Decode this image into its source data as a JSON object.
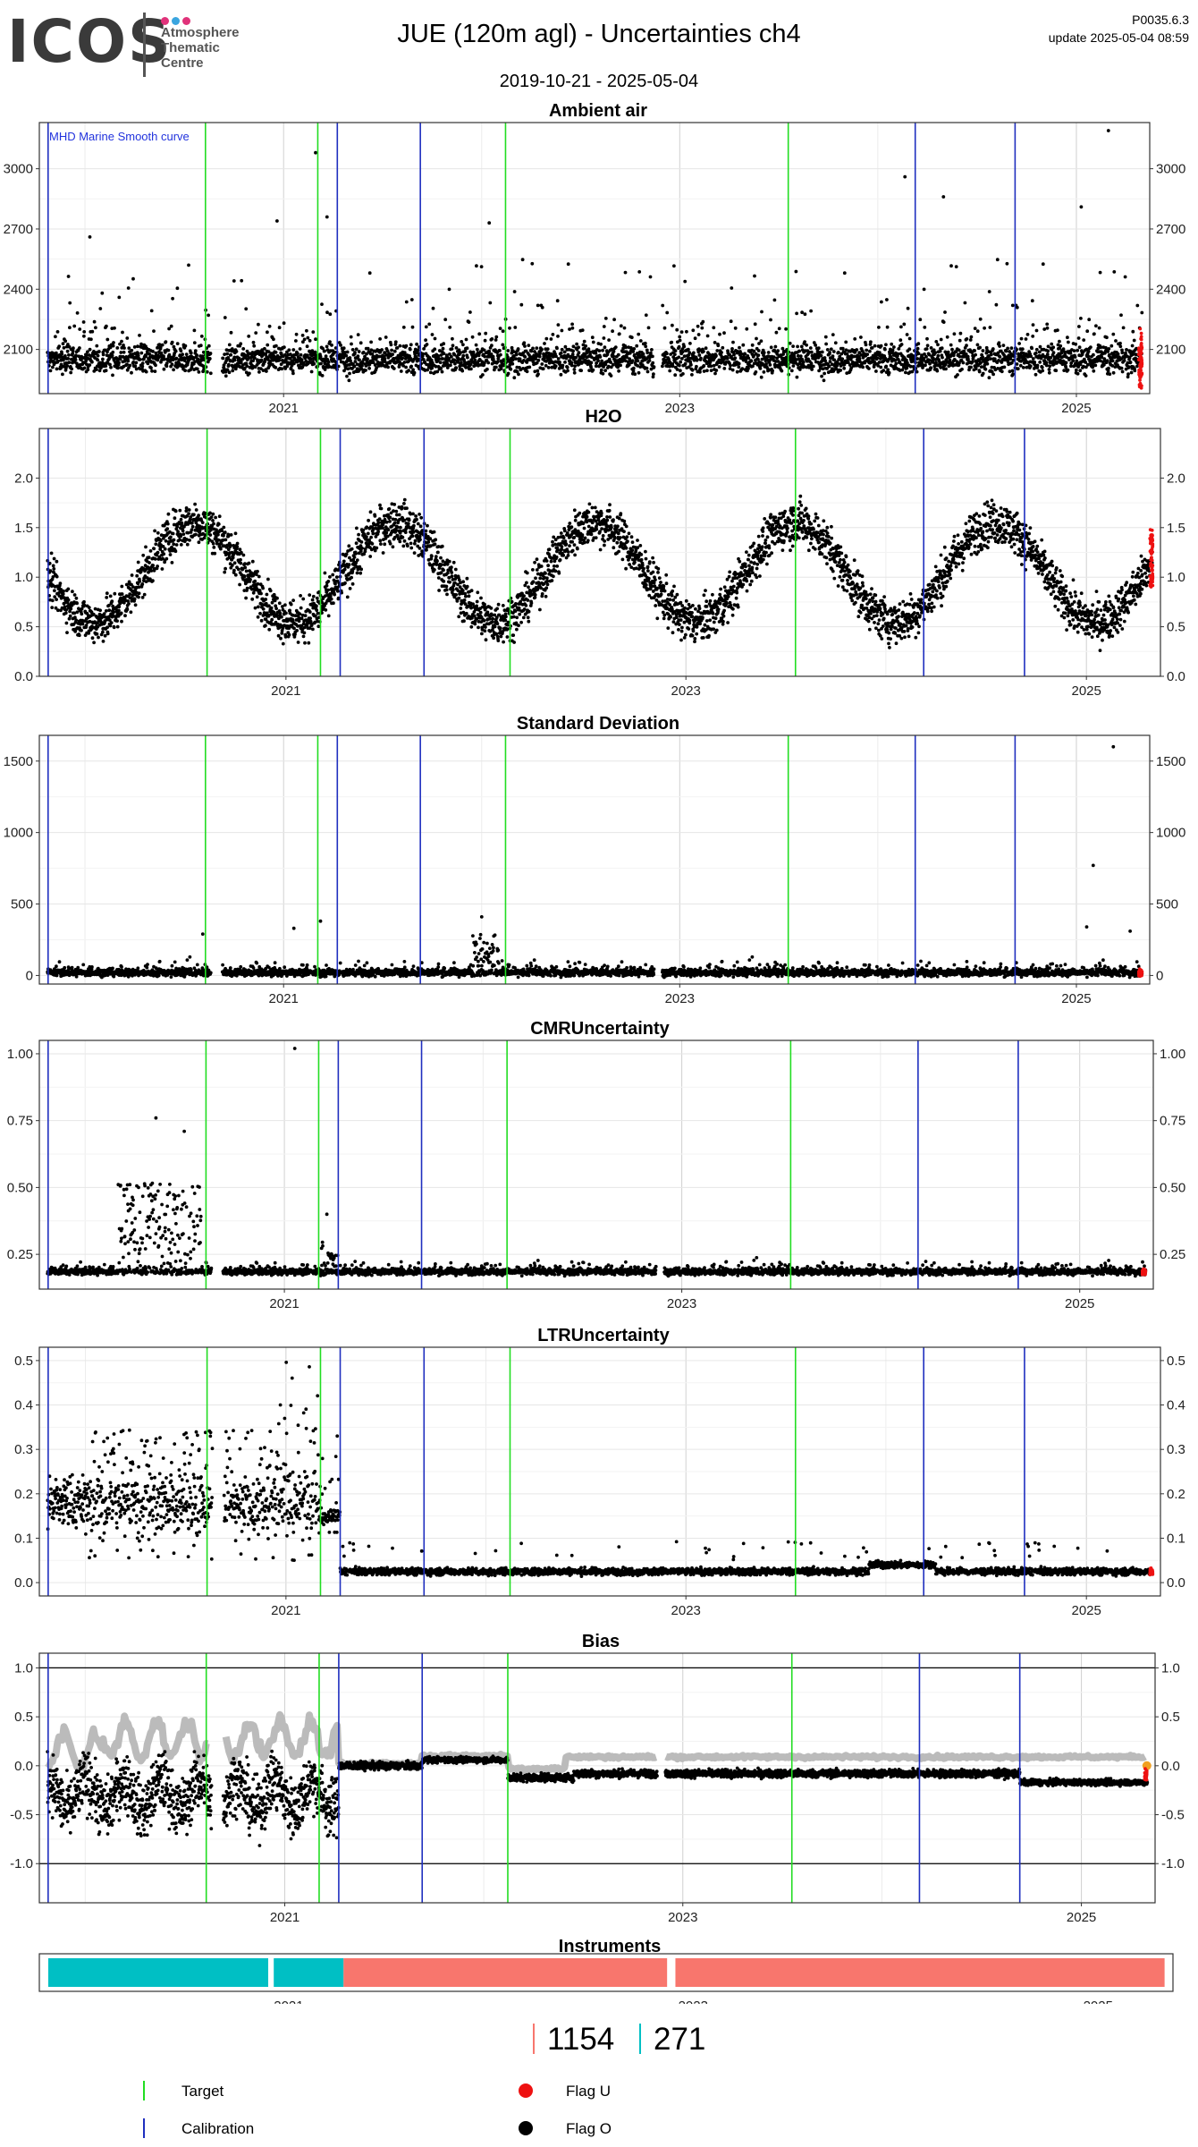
{
  "header": {
    "logo": "ICOS",
    "logo_sub": [
      "Atmosphere",
      "Thematic",
      "Centre"
    ],
    "title": "JUE  (120m agl) - Uncertainties ch4",
    "date_range": "2019-10-21 - 2025-05-04",
    "version": "P0035.6.3",
    "update": "update  2025-05-04 08:59"
  },
  "colors": {
    "target": "#22dd22",
    "calibration": "#1f2fbf",
    "flag_u": "#ee1111",
    "flag_o": "#000000",
    "bias_grey": "#bbbbbb",
    "bias_orange": "#f0a020",
    "instrument_a": "#00bfc4",
    "instrument_b": "#f8766d",
    "grid": "#e8e8e8"
  },
  "shared_vertical_lines": {
    "target_dates": [
      "2020-08-10",
      "2021-03-05",
      "2022-02-14",
      "2023-07-20"
    ],
    "calibration_dates": [
      "2019-10-25",
      "2021-04-10",
      "2021-09-10",
      "2024-03-10",
      "2024-09-10"
    ]
  },
  "chart_data": [
    {
      "type": "scatter",
      "title": "Ambient air",
      "annotation": "MHD Marine Smooth curve",
      "xlim": [
        "2019-10-21",
        "2025-05-04"
      ],
      "ylim": [
        1880,
        3230
      ],
      "yticks": [
        2100,
        2400,
        2700,
        3000
      ],
      "xticks": [
        "2021",
        "2023",
        "2025"
      ],
      "baseline": 2050,
      "spread": 70,
      "spike_max": 3000,
      "spikes": [
        [
          "2020-01-10",
          2660
        ],
        [
          "2020-07-10",
          2520
        ],
        [
          "2020-12-20",
          2740
        ],
        [
          "2021-03-01",
          3080
        ],
        [
          "2021-03-22",
          2760
        ],
        [
          "2022-01-15",
          2730
        ],
        [
          "2024-02-20",
          2960
        ],
        [
          "2024-05-01",
          2860
        ],
        [
          "2025-01-10",
          2810
        ],
        [
          "2025-03-01",
          3190
        ]
      ]
    },
    {
      "type": "scatter",
      "title": "H2O",
      "xlim": [
        "2019-10-21",
        "2025-05-04"
      ],
      "ylim": [
        0,
        2.5
      ],
      "yticks": [
        0.0,
        0.5,
        1.0,
        1.5,
        2.0
      ],
      "xticks": [
        "2021",
        "2023",
        "2025"
      ],
      "seasonal": {
        "mean": 1.05,
        "amp": 0.5,
        "peak_month": 7
      }
    },
    {
      "type": "scatter",
      "title": "Standard Deviation",
      "xlim": [
        "2019-10-21",
        "2025-05-04"
      ],
      "ylim": [
        -60,
        1680
      ],
      "yticks": [
        0,
        500,
        1000,
        1500
      ],
      "xticks": [
        "2021",
        "2023",
        "2025"
      ],
      "baseline": 20,
      "spread": 25,
      "spikes": [
        [
          "2020-08-05",
          290
        ],
        [
          "2021-01-20",
          330
        ],
        [
          "2021-03-10",
          380
        ],
        [
          "2022-01-01",
          410
        ],
        [
          "2025-02-01",
          770
        ],
        [
          "2025-01-20",
          340
        ],
        [
          "2025-03-10",
          1600
        ],
        [
          "2025-04-10",
          310
        ]
      ]
    },
    {
      "type": "scatter",
      "title": "CMRUncertainty",
      "xlim": [
        "2019-10-21",
        "2025-05-04"
      ],
      "ylim": [
        0.12,
        1.05
      ],
      "yticks": [
        0.25,
        0.5,
        0.75,
        1.0
      ],
      "xticks": [
        "2021",
        "2023",
        "2025"
      ],
      "baseline": 0.185,
      "spread": 0.012,
      "spikes": [
        [
          "2020-05-10",
          0.76
        ],
        [
          "2020-07-01",
          0.71
        ],
        [
          "2021-01-20",
          1.02
        ],
        [
          "2021-03-20",
          0.4
        ]
      ]
    },
    {
      "type": "scatter",
      "title": "LTRUncertainty",
      "xlim": [
        "2019-10-21",
        "2025-05-04"
      ],
      "ylim": [
        -0.03,
        0.53
      ],
      "yticks": [
        0.0,
        0.1,
        0.2,
        0.3,
        0.4,
        0.5
      ],
      "xticks": [
        "2021",
        "2023",
        "2025"
      ],
      "early": {
        "until": "2021-04-10",
        "mean": 0.18,
        "spread": 0.06
      },
      "late": {
        "mean": 0.025,
        "spread": 0.008
      }
    },
    {
      "type": "line",
      "title": "Bias",
      "xlim": [
        "2019-10-21",
        "2025-05-04"
      ],
      "ylim": [
        -1.4,
        1.15
      ],
      "yticks": [
        -1.0,
        -0.5,
        0.0,
        0.5,
        1.0
      ],
      "xticks": [
        "2021",
        "2023",
        "2025"
      ],
      "hlines": [
        1.0,
        -1.0
      ]
    },
    {
      "type": "bar",
      "title": "Instruments",
      "xlim": [
        "2019-10-21",
        "2025-05-04"
      ],
      "xticks": [
        "2021",
        "2023",
        "2025"
      ],
      "segments": [
        {
          "instrument": "271",
          "start": "2019-10-25",
          "end": "2020-11-25"
        },
        {
          "instrument": "271",
          "start": "2020-12-05",
          "end": "2021-04-10"
        },
        {
          "instrument": "1154",
          "start": "2021-04-10",
          "end": "2022-11-15"
        },
        {
          "instrument": "1154",
          "start": "2022-11-30",
          "end": "2025-05-01"
        }
      ]
    }
  ],
  "instrument_counts": [
    {
      "id": "1154",
      "color": "#f8766d"
    },
    {
      "id": "271",
      "color": "#00bfc4"
    }
  ],
  "legend": {
    "target": "Target",
    "calibration": "Calibration",
    "flag_u": "Flag U",
    "flag_o": "Flag O"
  }
}
